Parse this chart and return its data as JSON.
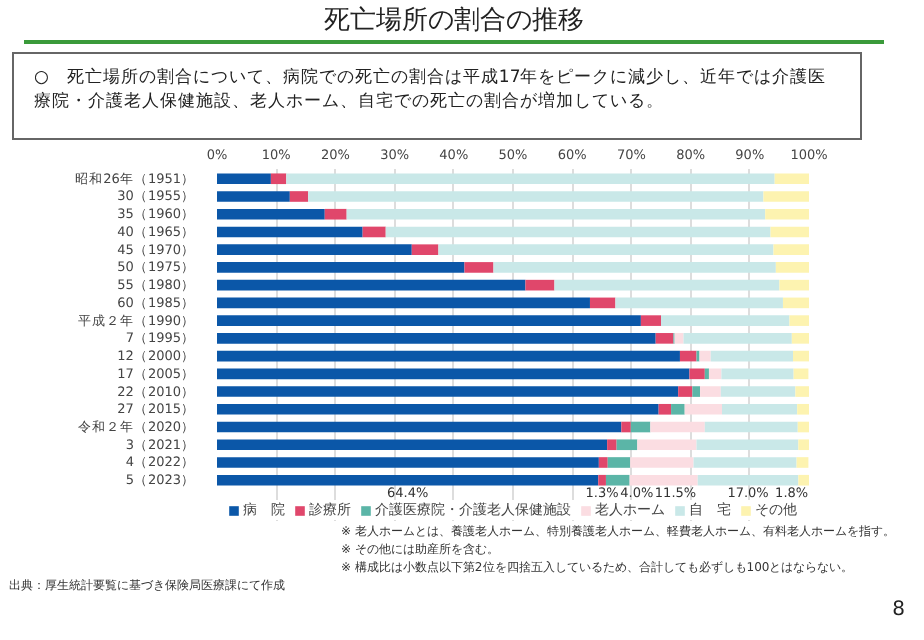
{
  "chart_data": {
    "type": "bar",
    "orientation": "horizontal",
    "stacked": true,
    "title": "死亡場所の割合の推移",
    "subtitle": "○　死亡場所の割合について、病院での死亡の割合は平成17年をピークに減少し、近年では介護医療院・介護老人保健施設、老人ホーム、自宅での死亡の割合が増加している。",
    "categories": [
      "昭和26年（1951）",
      "30（1955）",
      "35（1960）",
      "40（1965）",
      "45（1970）",
      "50（1975）",
      "55（1980）",
      "60（1985）",
      "平成２年（1990）",
      "7（1995）",
      "12（2000）",
      "17（2005）",
      "22（2010）",
      "27（2015）",
      "令和２年（2020）",
      "3（2021）",
      "4（2022）",
      "5（2023）"
    ],
    "series": [
      {
        "name": "病　院",
        "color": "#0b57a8",
        "values": [
          9.1,
          12.3,
          18.2,
          24.6,
          32.9,
          41.8,
          52.1,
          63.0,
          71.6,
          74.1,
          78.2,
          79.8,
          77.9,
          74.6,
          68.3,
          65.9,
          64.5,
          64.4
        ],
        "value_labels": [
          null,
          null,
          null,
          null,
          null,
          null,
          null,
          null,
          null,
          null,
          null,
          null,
          null,
          null,
          null,
          null,
          null,
          "64.4%"
        ]
      },
      {
        "name": "診療所",
        "color": "#e0476b",
        "values": [
          2.6,
          3.1,
          3.7,
          3.9,
          4.5,
          4.9,
          4.9,
          4.3,
          3.4,
          3.0,
          2.8,
          2.6,
          2.4,
          2.1,
          1.6,
          1.6,
          1.5,
          1.3
        ],
        "value_labels": [
          null,
          null,
          null,
          null,
          null,
          null,
          null,
          null,
          null,
          null,
          null,
          null,
          null,
          null,
          null,
          null,
          null,
          "1.3%"
        ]
      },
      {
        "name": "介護医療院・介護老人保健施設",
        "color": "#5bb5a7",
        "values": [
          0,
          0,
          0,
          0,
          0,
          0,
          0,
          0,
          0,
          0.2,
          0.5,
          0.7,
          1.3,
          2.3,
          3.3,
          3.5,
          3.8,
          4.0
        ],
        "value_labels": [
          null,
          null,
          null,
          null,
          null,
          null,
          null,
          null,
          null,
          null,
          null,
          null,
          null,
          null,
          null,
          null,
          null,
          "4.0%"
        ]
      },
      {
        "name": "老人ホーム",
        "color": "#fbdde2",
        "values": [
          0,
          0,
          0,
          0,
          0,
          0,
          0,
          0,
          0,
          1.5,
          1.9,
          2.1,
          3.5,
          6.3,
          9.2,
          10.0,
          10.7,
          11.5
        ],
        "value_labels": [
          null,
          null,
          null,
          null,
          null,
          null,
          null,
          null,
          null,
          null,
          null,
          null,
          null,
          null,
          null,
          null,
          null,
          "11.5%"
        ]
      },
      {
        "name": "自　宅",
        "color": "#c9e8e8",
        "values": [
          82.5,
          76.9,
          70.7,
          65.0,
          56.6,
          47.7,
          38.0,
          28.3,
          21.7,
          18.3,
          13.9,
          12.2,
          12.6,
          12.7,
          15.7,
          17.2,
          17.4,
          17.0
        ],
        "value_labels": [
          null,
          null,
          null,
          null,
          null,
          null,
          null,
          null,
          null,
          null,
          null,
          null,
          null,
          null,
          null,
          null,
          null,
          "17.0%"
        ]
      },
      {
        "name": "その他",
        "color": "#fdf3b0",
        "values": [
          5.9,
          7.7,
          7.4,
          6.5,
          6.0,
          5.6,
          5.0,
          4.4,
          3.3,
          2.9,
          2.8,
          2.5,
          2.3,
          2.0,
          1.9,
          1.9,
          2.0,
          1.8
        ],
        "value_labels": [
          null,
          null,
          null,
          null,
          null,
          null,
          null,
          null,
          null,
          null,
          null,
          null,
          null,
          null,
          null,
          null,
          null,
          "1.8%"
        ]
      }
    ],
    "xlim": [
      0,
      100
    ],
    "xticks": [
      {
        "value": 0,
        "label": "0%"
      },
      {
        "value": 10,
        "label": "10%"
      },
      {
        "value": 20,
        "label": "20%"
      },
      {
        "value": 30,
        "label": "30%"
      },
      {
        "value": 40,
        "label": "40%"
      },
      {
        "value": 50,
        "label": "50%"
      },
      {
        "value": 60,
        "label": "60%"
      },
      {
        "value": 70,
        "label": "70%"
      },
      {
        "value": 80,
        "label": "80%"
      },
      {
        "value": 90,
        "label": "90%"
      },
      {
        "value": 100,
        "label": "100%"
      }
    ],
    "grid": "x",
    "legend": "bottom",
    "annotations": [
      "※ 老人ホームとは、養護老人ホーム、特別養護老人ホーム、軽費老人ホーム、有料老人ホームを指す。",
      "※ その他には助産所を含む。",
      "※ 構成比は小数点以下第2位を四捨五入しているため、合計しても必ずしも100とはならない。",
      "出典：厚生統計要覧に基づき保険局医療課にて作成",
      "8"
    ]
  }
}
